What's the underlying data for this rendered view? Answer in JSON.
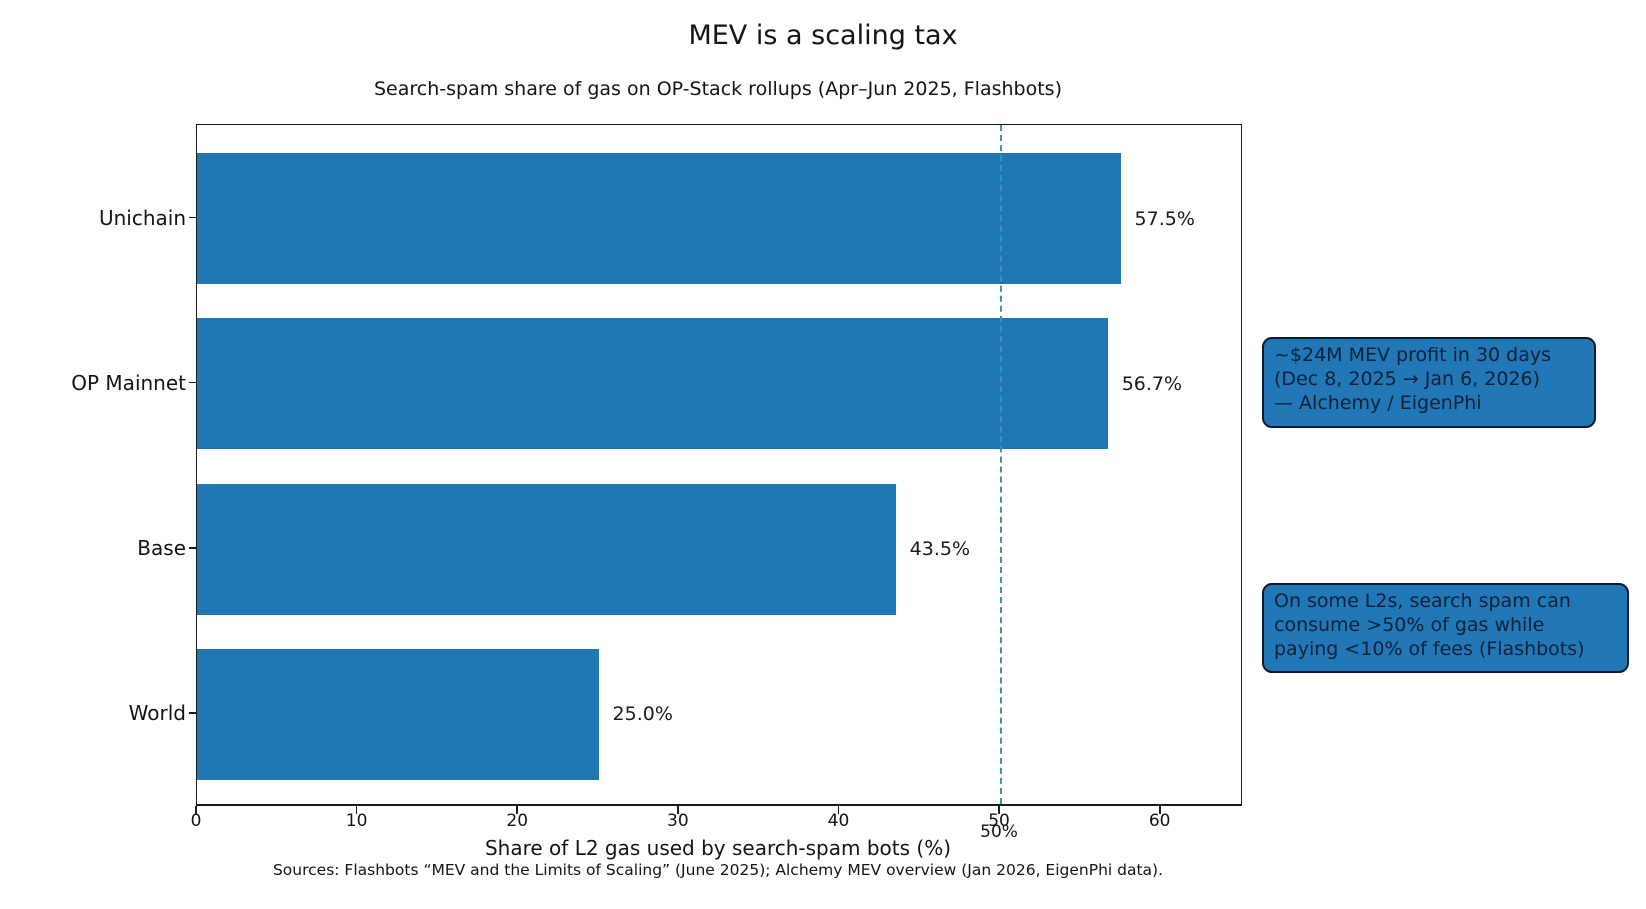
{
  "figure": {
    "title": "MEV is a scaling tax",
    "subtitle": "Search-spam share of gas on OP-Stack rollups (Apr–Jun 2025, Flashbots)",
    "xlabel": "Share of L2 gas used by search-spam bots (%)",
    "sources": "Sources: Flashbots “MEV and the Limits of Scaling” (June 2025); Alchemy MEV overview (Jan 2026, EigenPhi data)."
  },
  "chart_data": {
    "type": "bar",
    "orientation": "horizontal",
    "title": "Search-spam share of gas on OP-Stack rollups (Apr–Jun 2025, Flashbots)",
    "suptitle": "MEV is a scaling tax",
    "categories": [
      "Unichain",
      "OP Mainnet",
      "Base",
      "World"
    ],
    "values": [
      57.5,
      56.7,
      43.5,
      25.0
    ],
    "value_labels": [
      "57.5%",
      "56.7%",
      "43.5%",
      "25.0%"
    ],
    "xlabel": "Share of L2 gas used by search-spam bots (%)",
    "ylabel": "",
    "xlim": [
      0,
      65
    ],
    "xticks": [
      0,
      10,
      20,
      30,
      40,
      50,
      60
    ],
    "grid": false,
    "legend": false,
    "bar_color": "#1f77b4",
    "reference_line": {
      "x": 50,
      "label": "50%",
      "style": "dashed",
      "color": "#3e8ec4"
    }
  },
  "annotations": [
    {
      "text": "~$24M MEV profit in 30 days\n(Dec 8, 2025 → Jan 6, 2026)\n— Alchemy / EigenPhi"
    },
    {
      "text": "On some L2s, search spam can\nconsume >50% of gas while\npaying <10% of fees (Flashbots)"
    }
  ],
  "colors": {
    "bar": "#1f77b4",
    "annotation_fill": "#2277b6",
    "annotation_border": "#0c1b2e",
    "annotation_text": "#0d2239",
    "reference_line": "#3e8ec4",
    "axis": "#1c1c1c",
    "text": "#141414",
    "background": "#ffffff"
  }
}
